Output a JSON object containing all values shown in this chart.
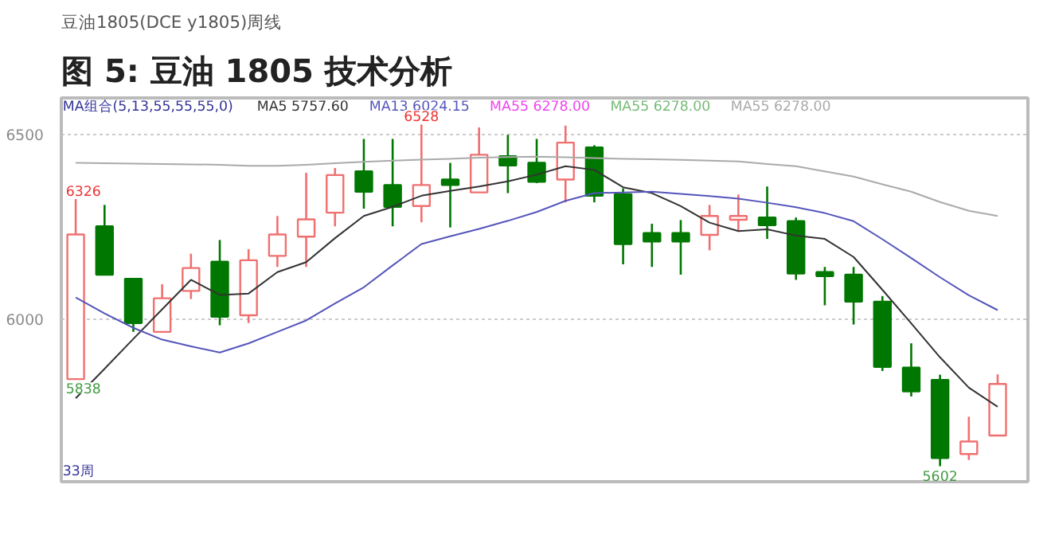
{
  "chart_data": {
    "type": "candlestick",
    "title": "图 5: 豆油 1805 技术分析",
    "subtitle": "豆油1805(DCE y1805)周线",
    "categories": [
      null,
      null,
      null,
      null,
      null,
      null,
      null,
      null,
      null,
      null,
      null,
      null,
      null,
      null,
      null,
      null,
      null,
      null,
      null,
      null,
      null,
      null,
      null,
      null,
      null,
      null,
      null,
      null,
      null,
      null,
      null,
      null,
      null
    ],
    "ohlc": [
      [
        5838,
        6326,
        5838,
        6230
      ],
      [
        6252,
        6310,
        6121,
        6121
      ],
      [
        6110,
        6110,
        5966,
        5990
      ],
      [
        5966,
        6095,
        5966,
        6057
      ],
      [
        6077,
        6178,
        6055,
        6139
      ],
      [
        6156,
        6215,
        5984,
        6007
      ],
      [
        6011,
        6190,
        5990,
        6160
      ],
      [
        6172,
        6280,
        6142,
        6230
      ],
      [
        6224,
        6397,
        6142,
        6271
      ],
      [
        6289,
        6410,
        6252,
        6391
      ],
      [
        6401,
        6489,
        6300,
        6346
      ],
      [
        6364,
        6489,
        6252,
        6305
      ],
      [
        6307,
        6528,
        6263,
        6364
      ],
      [
        6379,
        6424,
        6249,
        6364
      ],
      [
        6344,
        6520,
        6344,
        6446
      ],
      [
        6442,
        6500,
        6342,
        6417
      ],
      [
        6424,
        6489,
        6369,
        6373
      ],
      [
        6379,
        6525,
        6317,
        6479
      ],
      [
        6466,
        6472,
        6317,
        6335
      ],
      [
        6339,
        6355,
        6149,
        6204
      ],
      [
        6234,
        6259,
        6142,
        6211
      ],
      [
        6234,
        6269,
        6121,
        6211
      ],
      [
        6229,
        6310,
        6187,
        6280
      ],
      [
        6270,
        6338,
        6238,
        6280
      ],
      [
        6276,
        6360,
        6218,
        6255
      ],
      [
        6266,
        6276,
        6107,
        6124
      ],
      [
        6128,
        6142,
        6038,
        6117
      ],
      [
        6121,
        6142,
        5986,
        6048
      ],
      [
        6048,
        6063,
        5860,
        5871
      ],
      [
        5869,
        5935,
        5791,
        5805
      ],
      [
        5836,
        5850,
        5602,
        5624
      ],
      [
        5635,
        5736,
        5619,
        5669
      ],
      [
        5685,
        5851,
        5685,
        5825
      ]
    ],
    "colors": [
      "#f07070",
      "#007700",
      "#007700",
      "#f07070",
      "#f07070",
      "#007700",
      "#f07070",
      "#f07070",
      "#f07070",
      "#f07070",
      "#007700",
      "#007700",
      "#f07070",
      "#007700",
      "#f07070",
      "#007700",
      "#007700",
      "#f07070",
      "#007700",
      "#007700",
      "#007700",
      "#007700",
      "#f07070",
      "#f07070",
      "#007700",
      "#007700",
      "#007700",
      "#007700",
      "#007700",
      "#007700",
      "#007700",
      "#f07070",
      "#f07070"
    ],
    "series": [
      {
        "name": "MA5 5757.60",
        "type": "line",
        "color": "#333333",
        "values": [
          5786,
          5866,
          5947,
          6027,
          6107,
          6066,
          6070,
          6128,
          6155,
          6220,
          6280,
          6305,
          6335,
          6348,
          6360,
          6374,
          6392,
          6415,
          6405,
          6358,
          6342,
          6307,
          6262,
          6239,
          6244,
          6227,
          6218,
          6169,
          6080,
          5989,
          5897,
          5815,
          5763
        ]
      },
      {
        "name": "MA13 6024.15",
        "type": "line",
        "color": "#5555bb",
        "values": [
          6059,
          6016,
          5977,
          5945,
          5927,
          5910,
          5935,
          5966,
          5997,
          6043,
          6087,
          6146,
          6204,
          6225,
          6245,
          6267,
          6291,
          6321,
          6342,
          6344,
          6346,
          6340,
          6334,
          6327,
          6316,
          6304,
          6288,
          6266,
          6217,
          6166,
          6114,
          6065,
          6025
        ]
      },
      {
        "name": "MA55 6278.00",
        "type": "line",
        "color": "#aaaaaa",
        "values": [
          6424,
          6423,
          6422,
          6421,
          6420,
          6419,
          6416,
          6416,
          6419,
          6423,
          6427,
          6430,
          6433,
          6435,
          6438,
          6440,
          6441,
          6439,
          6437,
          6435,
          6434,
          6432,
          6430,
          6428,
          6421,
          6415,
          6401,
          6387,
          6366,
          6346,
          6318,
          6294,
          6280
        ]
      }
    ],
    "ylim": [
      5560,
      6600
    ],
    "yticks": [
      6000,
      6500
    ],
    "grid": "y",
    "legend": "top",
    "tick_labels": "y",
    "annotations": [
      "MA组合(5,13,55,55,55,0)",
      "MA55 6278.00",
      "MA55 6278.00",
      "33周",
      {
        "text": "6326",
        "y": 6326
      },
      {
        "text": "5838",
        "y": 5838
      },
      {
        "text": "6528",
        "y": 6528
      },
      {
        "text": "5602",
        "y": 5602
      }
    ]
  }
}
